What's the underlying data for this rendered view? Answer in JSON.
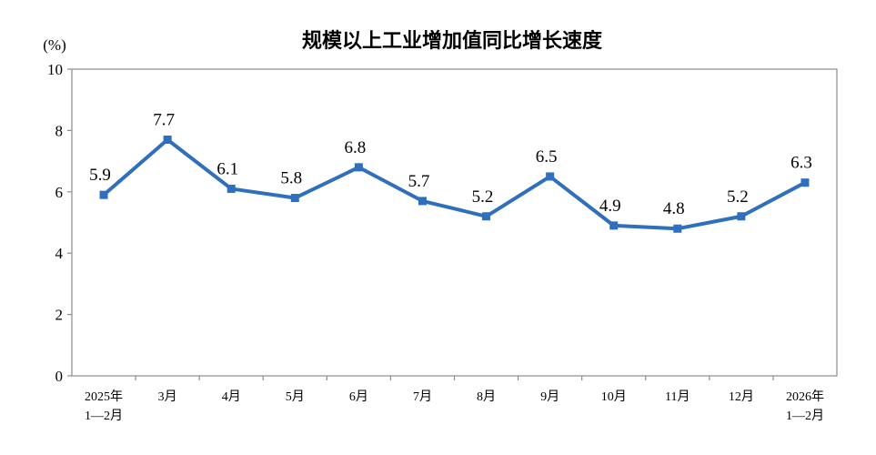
{
  "chart_data": {
    "type": "line",
    "title": "规模以上工业增加值同比增长速度",
    "ylabel": "(%)",
    "xlabel": "",
    "ylim": [
      0,
      10
    ],
    "yticks": [
      "0",
      "2",
      "4",
      "6",
      "8",
      "10"
    ],
    "grid": false,
    "categories": [
      [
        "2025年",
        "1—2月"
      ],
      [
        "3月"
      ],
      [
        "4月"
      ],
      [
        "5月"
      ],
      [
        "6月"
      ],
      [
        "7月"
      ],
      [
        "8月"
      ],
      [
        "9月"
      ],
      [
        "10月"
      ],
      [
        "11月"
      ],
      [
        "12月"
      ],
      [
        "2026年",
        "1—2月"
      ]
    ],
    "series": [
      {
        "values": [
          5.9,
          7.7,
          6.1,
          5.8,
          6.8,
          5.7,
          5.2,
          6.5,
          4.9,
          4.8,
          5.2,
          6.3
        ],
        "labels": [
          "5.9",
          "7.7",
          "6.1",
          "5.8",
          "6.8",
          "5.7",
          "5.2",
          "6.5",
          "4.9",
          "4.8",
          "5.2",
          "6.3"
        ],
        "color": "#2f6fbd"
      }
    ]
  }
}
